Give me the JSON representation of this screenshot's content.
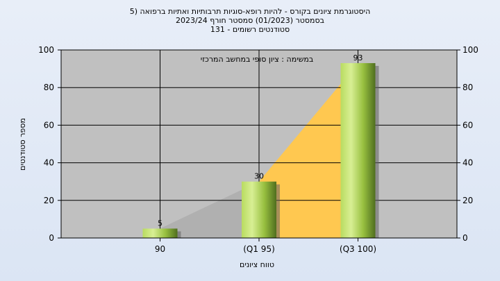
{
  "chart_data": {
    "type": "bar",
    "title_lines": [
      "היסטוגרמת ציונים בקורס - להיות רופא-סוגיות תרבותיות ואתיות ברפואה (5",
      "בסמסטר  (01/2023)  סמסטר חורף 2023/24",
      "סטודנטים רשומים - 131"
    ],
    "annotation": "במשימה : ציון סופי במחשב המרכזי",
    "categories": [
      "90",
      "(Q1 95)",
      "(Q3 100)"
    ],
    "values": [
      5,
      30,
      93
    ],
    "data_labels": [
      "5",
      "30",
      "93"
    ],
    "xlabel": "טווח ציונים",
    "ylabel": "מספר סטודנטים",
    "ylim": [
      0,
      100
    ],
    "yticks": [
      0,
      20,
      40,
      60,
      80,
      100
    ],
    "grid": true,
    "legend": "none",
    "colors": {
      "plot_bg": "#c0c0c0",
      "bar_light": "#d4ec8a",
      "bar_dark": "#5a7a24",
      "area_grey": "#b0b0b0",
      "area_yellow": "#ffc850"
    }
  }
}
